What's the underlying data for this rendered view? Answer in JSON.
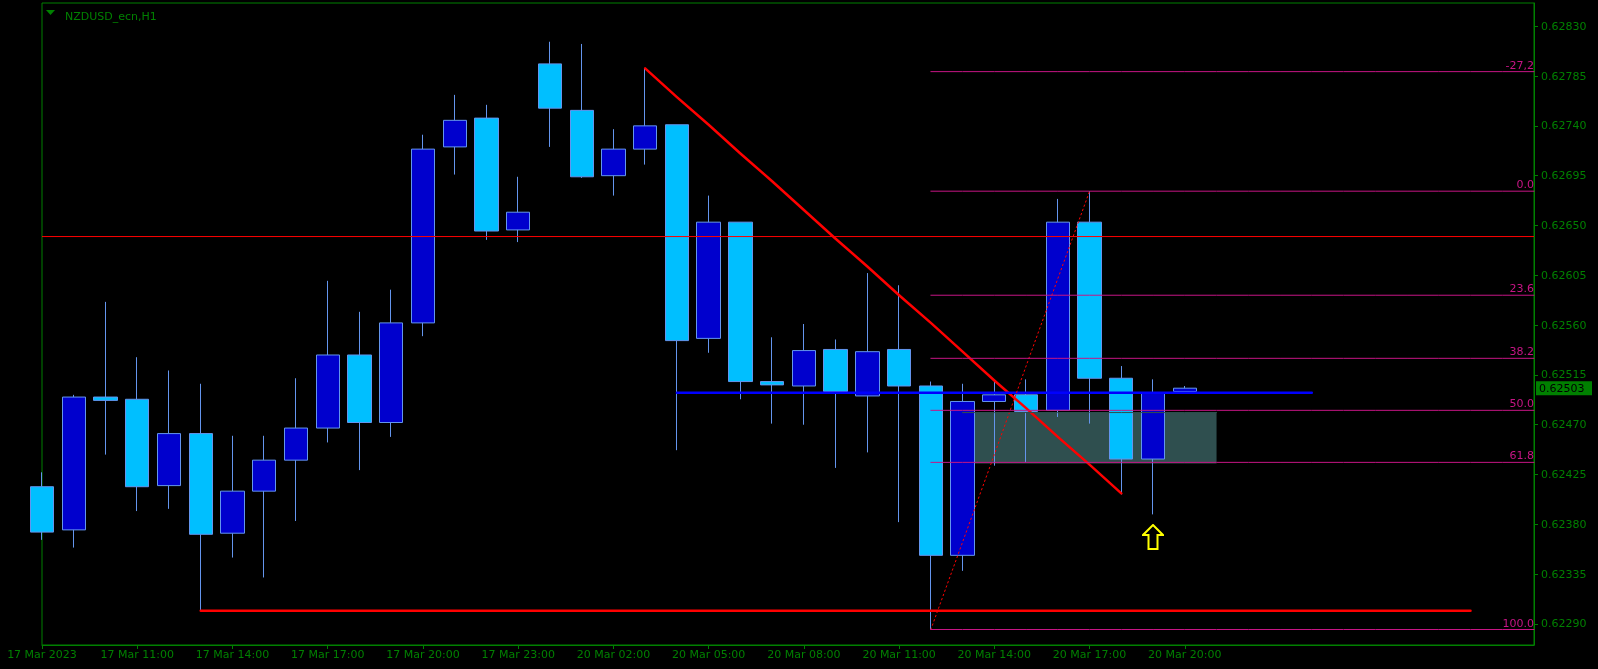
{
  "chart_data": {
    "type": "candlestick",
    "title": "NZDUSD_ecn,H1",
    "categories": [
      "17 Mar 2023",
      null,
      null,
      "17 Mar 11:00",
      null,
      null,
      "17 Mar 14:00",
      null,
      null,
      "17 Mar 17:00",
      null,
      null,
      "17 Mar 20:00",
      null,
      null,
      "17 Mar 23:00",
      null,
      null,
      "20 Mar 02:00",
      null,
      null,
      "20 Mar 05:00",
      null,
      null,
      "20 Mar 08:00",
      null,
      null,
      "20 Mar 11:00",
      null,
      null,
      "20 Mar 14:00",
      null,
      null,
      "20 Mar 17:00",
      null,
      null,
      "20 Mar 20:00",
      null,
      null,
      null,
      null,
      null,
      null,
      null,
      null,
      null,
      null,
      null
    ],
    "ylim": [
      0.62271,
      0.62851
    ],
    "yticks": [
      {
        "value": 0.6283,
        "label": "0.62830"
      },
      0.62785,
      {
        "value": 0.6274,
        "label": "0.62740"
      },
      0.62695,
      {
        "value": 0.6265,
        "label": "0.62650"
      },
      0.62605,
      {
        "value": 0.6256,
        "label": "0.62560"
      },
      0.62515,
      {
        "value": 0.6247,
        "label": "0.62470"
      },
      0.62425,
      {
        "value": 0.6238,
        "label": "0.62380"
      },
      0.62335,
      {
        "value": 0.6229,
        "label": "0.62290"
      }
    ],
    "series": [
      {
        "type": "candlestick",
        "ohlc": [
          [
            0.62414,
            0.62427,
            0.62366,
            0.62373
          ],
          [
            0.62375,
            0.62497,
            0.62359,
            0.62495
          ],
          [
            0.62495,
            0.62581,
            0.62443,
            0.62492
          ],
          [
            0.62493,
            0.62531,
            0.62392,
            0.62414
          ],
          [
            0.62415,
            0.62519,
            0.62394,
            0.62462
          ],
          [
            0.62462,
            0.62507,
            0.62302,
            0.62371
          ],
          [
            0.62372,
            0.6246,
            0.6235,
            0.6241
          ],
          [
            0.6241,
            0.6246,
            0.62332,
            0.62438
          ],
          [
            0.62438,
            0.62512,
            0.62383,
            0.62467
          ],
          [
            0.62467,
            0.626,
            0.62454,
            0.62533
          ],
          [
            0.62533,
            0.62572,
            0.62429,
            0.62472
          ],
          [
            0.62472,
            0.62592,
            0.62459,
            0.62562
          ],
          [
            0.62562,
            0.62732,
            0.6255,
            0.62719
          ],
          [
            0.62721,
            0.62768,
            0.62696,
            0.62745
          ],
          [
            0.62747,
            0.62759,
            0.62637,
            0.62645
          ],
          [
            0.62646,
            0.62694,
            0.62635,
            0.62662
          ],
          [
            0.62796,
            0.62816,
            0.62721,
            0.62756
          ],
          [
            0.62754,
            0.62814,
            0.62693,
            0.62694
          ],
          [
            0.62695,
            0.62737,
            0.62677,
            0.62719
          ],
          [
            0.62719,
            0.62792,
            0.62705,
            0.6274
          ],
          [
            0.62741,
            0.62741,
            0.62447,
            0.62546
          ],
          [
            0.62548,
            0.62677,
            0.62535,
            0.62653
          ],
          [
            0.62653,
            0.62653,
            0.62493,
            0.62509
          ],
          [
            0.62509,
            0.62549,
            0.62471,
            0.62506
          ],
          [
            0.62505,
            0.62561,
            0.6247,
            0.62537
          ],
          [
            0.62538,
            0.62547,
            0.62431,
            0.625
          ],
          [
            0.62496,
            0.62607,
            0.62445,
            0.62536
          ],
          [
            0.62538,
            0.62596,
            0.62382,
            0.62505
          ],
          [
            0.62505,
            0.62509,
            0.62285,
            0.62352
          ],
          [
            0.62352,
            0.62507,
            0.62338,
            0.62491
          ],
          [
            0.62491,
            0.6251,
            0.62433,
            0.62497
          ],
          [
            0.62497,
            0.62511,
            0.62436,
            0.62482
          ],
          [
            0.62483,
            0.62674,
            0.62477,
            0.62653
          ],
          [
            0.62653,
            0.62681,
            0.62471,
            0.62512
          ],
          [
            0.62512,
            0.62523,
            0.62407,
            0.62439
          ],
          [
            0.62439,
            0.62511,
            0.62389,
            0.62499
          ],
          [
            0.625,
            0.62505,
            0.625,
            0.62503
          ],
          null,
          null,
          null,
          null,
          null,
          null,
          null,
          null,
          null,
          null,
          null
        ],
        "colors": [
          "#00bfff",
          "#0000cd",
          "#00bfff",
          "#00bfff",
          "#0000cd",
          "#00bfff",
          "#0000cd",
          "#0000cd",
          "#0000cd",
          "#0000cd",
          "#00bfff",
          "#0000cd",
          "#0000cd",
          "#0000cd",
          "#00bfff",
          "#0000cd",
          "#00bfff",
          "#00bfff",
          "#0000cd",
          "#0000cd",
          "#00bfff",
          "#0000cd",
          "#00bfff",
          "#00bfff",
          "#0000cd",
          "#00bfff",
          "#0000cd",
          "#00bfff",
          "#00bfff",
          "#0000cd",
          "#0000cd",
          "#00bfff",
          "#0000cd",
          "#00bfff",
          "#00bfff",
          "#0000cd",
          "#0000cd",
          null,
          null,
          null,
          null,
          null,
          null,
          null,
          null,
          null,
          null,
          null
        ]
      },
      {
        "type": "line",
        "color": "#ff0000",
        "values": [
          null,
          null,
          null,
          null,
          null,
          null,
          null,
          null,
          null,
          null,
          null,
          null,
          null,
          null,
          null,
          null,
          null,
          null,
          null,
          0.62792,
          0.62766,
          0.62741,
          0.62715,
          0.6269,
          0.62664,
          0.62638,
          0.62613,
          0.62587,
          0.62562,
          0.62536,
          0.6251,
          0.62485,
          0.62459,
          0.62434,
          0.62408,
          null,
          null,
          null,
          null,
          null,
          null,
          null,
          null,
          null,
          null,
          null,
          null,
          null
        ]
      },
      {
        "type": "line",
        "color": "#ff0000",
        "values": [
          null,
          null,
          null,
          null,
          null,
          0.62302,
          0.62302,
          0.62302,
          0.62302,
          0.62302,
          0.62302,
          0.62302,
          0.62302,
          0.62302,
          0.62302,
          0.62302,
          0.62302,
          0.62302,
          0.62302,
          0.62302,
          0.62302,
          0.62302,
          0.62302,
          0.62302,
          0.62302,
          0.62302,
          0.62302,
          0.62302,
          0.62302,
          0.62302,
          0.62302,
          0.62302,
          0.62302,
          0.62302,
          0.62302,
          0.62302,
          0.62302,
          0.62302,
          0.62302,
          0.62302,
          0.62302,
          0.62302,
          0.62302,
          0.62302,
          0.62302,
          0.62302,
          null,
          null
        ]
      },
      {
        "type": "line",
        "color": "#0000ff",
        "values": [
          null,
          null,
          null,
          null,
          null,
          null,
          null,
          null,
          null,
          null,
          null,
          null,
          null,
          null,
          null,
          null,
          null,
          null,
          null,
          null,
          0.62499,
          0.62499,
          0.62499,
          0.62499,
          0.62499,
          0.62499,
          0.62499,
          0.62499,
          0.62499,
          0.62499,
          0.62499,
          0.62499,
          0.62499,
          0.62499,
          0.62499,
          0.62499,
          0.62499,
          0.62499,
          0.62499,
          0.62499,
          0.62499,
          null,
          null,
          null,
          null,
          null,
          null,
          null
        ]
      },
      {
        "type": "line",
        "color": "#ff0000",
        "line_style": "dotted",
        "values": [
          null,
          null,
          null,
          null,
          null,
          null,
          null,
          null,
          null,
          null,
          null,
          null,
          null,
          null,
          null,
          null,
          null,
          null,
          null,
          null,
          null,
          null,
          null,
          null,
          null,
          null,
          null,
          null,
          0.62285,
          0.62364,
          0.62443,
          0.62523,
          0.62602,
          0.62681,
          null,
          null,
          null,
          null,
          null,
          null,
          null,
          null,
          null,
          null,
          null,
          null,
          null,
          null
        ]
      },
      {
        "type": "line",
        "name": "-27,2",
        "color": "#c71585",
        "values": [
          null,
          null,
          null,
          null,
          null,
          null,
          null,
          null,
          null,
          null,
          null,
          null,
          null,
          null,
          null,
          null,
          null,
          null,
          null,
          null,
          null,
          null,
          null,
          null,
          null,
          null,
          null,
          null,
          0.62789,
          0.62789,
          0.62789,
          0.62789,
          0.62789,
          0.62789,
          0.62789,
          0.62789,
          0.62789,
          0.62789,
          0.62789,
          0.62789,
          0.62789,
          0.62789,
          0.62789,
          0.62789,
          0.62789,
          0.62789,
          0.62789,
          0.62789
        ]
      },
      {
        "type": "line",
        "name": "0.0",
        "color": "#c71585",
        "values": [
          null,
          null,
          null,
          null,
          null,
          null,
          null,
          null,
          null,
          null,
          null,
          null,
          null,
          null,
          null,
          null,
          null,
          null,
          null,
          null,
          null,
          null,
          null,
          null,
          null,
          null,
          null,
          null,
          0.62681,
          0.62681,
          0.62681,
          0.62681,
          0.62681,
          0.62681,
          0.62681,
          0.62681,
          0.62681,
          0.62681,
          0.62681,
          0.62681,
          0.62681,
          0.62681,
          0.62681,
          0.62681,
          0.62681,
          0.62681,
          0.62681,
          0.62681
        ]
      },
      {
        "type": "line",
        "name": "23.6",
        "color": "#c71585",
        "values": [
          null,
          null,
          null,
          null,
          null,
          null,
          null,
          null,
          null,
          null,
          null,
          null,
          null,
          null,
          null,
          null,
          null,
          null,
          null,
          null,
          null,
          null,
          null,
          null,
          null,
          null,
          null,
          null,
          0.62587,
          0.62587,
          0.62587,
          0.62587,
          0.62587,
          0.62587,
          0.62587,
          0.62587,
          0.62587,
          0.62587,
          0.62587,
          0.62587,
          0.62587,
          0.62587,
          0.62587,
          0.62587,
          0.62587,
          0.62587,
          0.62587,
          0.62587
        ]
      },
      {
        "type": "line",
        "name": "38.2",
        "color": "#c71585",
        "values": [
          null,
          null,
          null,
          null,
          null,
          null,
          null,
          null,
          null,
          null,
          null,
          null,
          null,
          null,
          null,
          null,
          null,
          null,
          null,
          null,
          null,
          null,
          null,
          null,
          null,
          null,
          null,
          null,
          0.6253,
          0.6253,
          0.6253,
          0.6253,
          0.6253,
          0.6253,
          0.6253,
          0.6253,
          0.6253,
          0.6253,
          0.6253,
          0.6253,
          0.6253,
          0.6253,
          0.6253,
          0.6253,
          0.6253,
          0.6253,
          0.6253,
          0.6253
        ]
      },
      {
        "type": "line",
        "name": "50.0",
        "color": "#c71585",
        "values": [
          null,
          null,
          null,
          null,
          null,
          null,
          null,
          null,
          null,
          null,
          null,
          null,
          null,
          null,
          null,
          null,
          null,
          null,
          null,
          null,
          null,
          null,
          null,
          null,
          null,
          null,
          null,
          null,
          0.62483,
          0.62483,
          0.62483,
          0.62483,
          0.62483,
          0.62483,
          0.62483,
          0.62483,
          0.62483,
          0.62483,
          0.62483,
          0.62483,
          0.62483,
          0.62483,
          0.62483,
          0.62483,
          0.62483,
          0.62483,
          0.62483,
          0.62483
        ]
      },
      {
        "type": "line",
        "name": "61.8",
        "color": "#c71585",
        "values": [
          null,
          null,
          null,
          null,
          null,
          null,
          null,
          null,
          null,
          null,
          null,
          null,
          null,
          null,
          null,
          null,
          null,
          null,
          null,
          null,
          null,
          null,
          null,
          null,
          null,
          null,
          null,
          null,
          0.62436,
          0.62436,
          0.62436,
          0.62436,
          0.62436,
          0.62436,
          0.62436,
          0.62436,
          0.62436,
          0.62436,
          0.62436,
          0.62436,
          0.62436,
          0.62436,
          0.62436,
          0.62436,
          0.62436,
          0.62436,
          0.62436,
          0.62436
        ]
      },
      {
        "type": "line",
        "name": "100.0",
        "color": "#c71585",
        "values": [
          null,
          null,
          null,
          null,
          null,
          null,
          null,
          null,
          null,
          null,
          null,
          null,
          null,
          null,
          null,
          null,
          null,
          null,
          null,
          null,
          null,
          null,
          null,
          null,
          null,
          null,
          null,
          null,
          0.62285,
          0.62285,
          0.62285,
          0.62285,
          0.62285,
          0.62285,
          0.62285,
          0.62285,
          0.62285,
          0.62285,
          0.62285,
          0.62285,
          0.62285,
          0.62285,
          0.62285,
          0.62285,
          0.62285,
          0.62285,
          0.62285,
          0.62285
        ]
      },
      {
        "type": "line",
        "color": "#2f4f4f",
        "values": [
          null,
          null,
          null,
          null,
          null,
          null,
          null,
          null,
          null,
          null,
          null,
          null,
          null,
          null,
          null,
          null,
          null,
          null,
          null,
          null,
          null,
          null,
          null,
          null,
          null,
          null,
          null,
          null,
          null,
          0.62481,
          0.62481,
          0.62481,
          0.62481,
          0.62481,
          0.62481,
          0.62481,
          0.62481,
          0.62481,
          null,
          null,
          null,
          null,
          null,
          null,
          null,
          null,
          null,
          null
        ],
        "lower": [
          null,
          null,
          null,
          null,
          null,
          null,
          null,
          null,
          null,
          null,
          null,
          null,
          null,
          null,
          null,
          null,
          null,
          null,
          null,
          null,
          null,
          null,
          null,
          null,
          null,
          null,
          null,
          null,
          null,
          0.62435,
          0.62435,
          0.62435,
          0.62435,
          0.62435,
          0.62435,
          0.62435,
          0.62435,
          0.62435,
          null,
          null,
          null,
          null,
          null,
          null,
          null,
          null,
          null,
          null
        ],
        "upper": [
          null,
          null,
          null,
          null,
          null,
          null,
          null,
          null,
          null,
          null,
          null,
          null,
          null,
          null,
          null,
          null,
          null,
          null,
          null,
          null,
          null,
          null,
          null,
          null,
          null,
          null,
          null,
          null,
          null,
          0.62481,
          0.62481,
          0.62481,
          0.62481,
          0.62481,
          0.62481,
          0.62481,
          0.62481,
          0.62481,
          null,
          null,
          null,
          null,
          null,
          null,
          null,
          null,
          null,
          null
        ]
      }
    ],
    "ref_lines": [
      {
        "axis": "y",
        "value": 0.6264,
        "color": "#ff0000"
      }
    ],
    "annotations": [
      "0.62503"
    ]
  }
}
